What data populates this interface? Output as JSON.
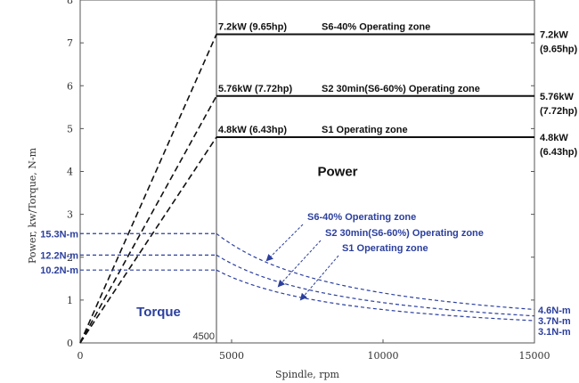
{
  "chart_data": {
    "type": "line",
    "xlabel": "Spindle, rpm",
    "ylabel": "Power, kw/Torque, N-m",
    "xlim": [
      0,
      15000
    ],
    "ylim": [
      0,
      8
    ],
    "x_ticks": [
      "0",
      "5000",
      "10000",
      "15000"
    ],
    "y_ticks": [
      "0",
      "1",
      "2",
      "3",
      "4",
      "5",
      "6",
      "7",
      "8"
    ],
    "base_speed_label": "4500",
    "base_speed": 4500,
    "grid": false,
    "power_title": "Power",
    "torque_title": "Torque",
    "power_series": [
      {
        "label": "7.2kW (9.65hp)",
        "zone": "S6-40% Operating zone",
        "right_label": [
          "7.2kW",
          "(9.65hp)"
        ],
        "value": 7.2
      },
      {
        "label": "5.76kW (7.72hp)",
        "zone": "S2 30min(S6-60%) Operating zone",
        "right_label": [
          "5.76kW",
          "(7.72hp)"
        ],
        "value": 5.76
      },
      {
        "label": "4.8kW (6.43hp)",
        "zone": "S1 Operating zone",
        "right_label": [
          "4.8kW",
          "(6.43hp)"
        ],
        "value": 4.8
      }
    ],
    "torque_series": [
      {
        "left_label": "15.3N-m",
        "right_label": "4.6N-m",
        "zone": "S6-40% Operating zone",
        "start": 2.55,
        "end": 0.78
      },
      {
        "left_label": "12.2N-m",
        "right_label": "3.7N-m",
        "zone": "S2 30min(S6-60%) Operating zone",
        "start": 2.05,
        "end": 0.63
      },
      {
        "left_label": "10.2N-m",
        "right_label": "3.1N-m",
        "zone": "S1 Operating zone",
        "start": 1.7,
        "end": 0.52
      }
    ],
    "colors": {
      "power": "#111111",
      "torque": "#2b3f9e",
      "axis": "#555555"
    }
  }
}
